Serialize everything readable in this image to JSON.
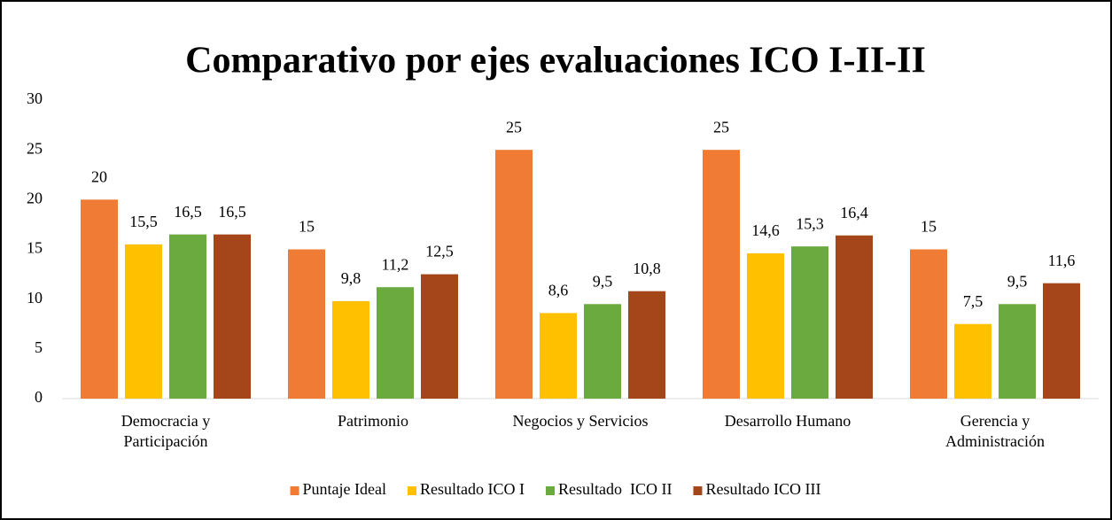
{
  "chart_data": {
    "type": "bar",
    "title": "Comparativo por ejes evaluaciones ICO I-II-II",
    "categories": [
      "Democracia y\nParticipación",
      "Patrimonio",
      "Negocios y Servicios",
      "Desarrollo Humano",
      "Gerencia y\nAdministración"
    ],
    "series": [
      {
        "name": "Puntaje Ideal",
        "color": "#f07b34",
        "values": [
          20,
          15,
          25,
          25,
          15
        ],
        "value_labels": [
          "20",
          "15",
          "25",
          "25",
          "15"
        ]
      },
      {
        "name": "Resultado ICO I",
        "color": "#ffc000",
        "values": [
          15.5,
          9.8,
          8.6,
          14.6,
          7.5
        ],
        "value_labels": [
          "15,5",
          "9,8",
          "8,6",
          "14,6",
          "7,5"
        ]
      },
      {
        "name": "Resultado  ICO II",
        "color": "#6aaa3f",
        "values": [
          16.5,
          11.2,
          9.5,
          15.3,
          9.5
        ],
        "value_labels": [
          "16,5",
          "11,2",
          "9,5",
          "15,3",
          "9,5"
        ]
      },
      {
        "name": "Resultado ICO III",
        "color": "#a4451a",
        "values": [
          16.5,
          12.5,
          10.8,
          16.4,
          11.6
        ],
        "value_labels": [
          "16,5",
          "12,5",
          "10,8",
          "16,4",
          "11,6"
        ]
      }
    ],
    "ylim": [
      0,
      30
    ],
    "yticks": [
      0,
      5,
      10,
      15,
      20,
      25,
      30
    ],
    "grid": false,
    "legend": "bottom"
  }
}
